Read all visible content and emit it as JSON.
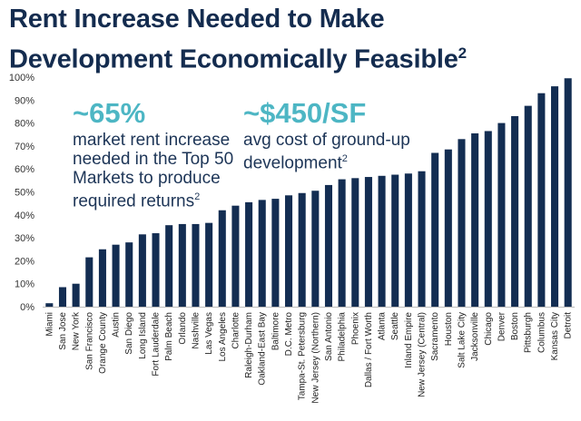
{
  "header": {
    "title_line1": "Rent Increase Needed to Make",
    "title_line2": "Development Economically Feasible",
    "title_sup": "2"
  },
  "callouts": [
    {
      "value": "~65%",
      "text_lines": [
        "market rent increase",
        "needed in the Top 50",
        "Markets to produce",
        "required returns"
      ],
      "sup": "2"
    },
    {
      "value": "~$450/SF",
      "text_lines": [
        "avg cost of ground-up",
        "development"
      ],
      "sup": "2"
    }
  ],
  "chart_data": {
    "type": "bar",
    "title": "Rent Increase Needed to Make Development Economically Feasible",
    "xlabel": "",
    "ylabel": "",
    "ylim": [
      0,
      100
    ],
    "yticks": [
      "0%",
      "10%",
      "20%",
      "30%",
      "40%",
      "50%",
      "60%",
      "70%",
      "80%",
      "90%",
      "100%"
    ],
    "grid": false,
    "bar_color": "#132d52",
    "categories": [
      "Miami",
      "San Jose",
      "New York",
      "San Francisco",
      "Orange County",
      "Austin",
      "San Diego",
      "Long Island",
      "Fort Lauderdale",
      "Palm Beach",
      "Orlando",
      "Nashville",
      "Las Vegas",
      "Los Angeles",
      "Charlotte",
      "Raleigh-Durham",
      "Oakland-East Bay",
      "Baltimore",
      "D.C. Metro",
      "Tampa-St. Petersburg",
      "New Jersey (Northern)",
      "San Antonio",
      "Philadelphia",
      "Phoenix",
      "Dallas / Fort Worth",
      "Atlanta",
      "Seattle",
      "Inland Empire",
      "New Jersey (Central)",
      "Sacramento",
      "Houston",
      "Salt Lake City",
      "Jacksonville",
      "Chicago",
      "Denver",
      "Boston",
      "Pittsburgh",
      "Columbus",
      "Kansas City",
      "Detroit"
    ],
    "values": [
      1.5,
      8.5,
      10,
      21.5,
      25,
      27,
      28,
      31.5,
      32,
      35.5,
      36,
      36,
      36.5,
      42,
      44,
      45.5,
      46.5,
      47,
      48.5,
      49.5,
      50.5,
      53,
      55.5,
      56,
      56.5,
      57,
      57.5,
      58,
      59,
      67,
      68.5,
      73,
      75.5,
      76.5,
      80,
      83,
      87.5,
      93,
      96,
      99.5
    ]
  }
}
